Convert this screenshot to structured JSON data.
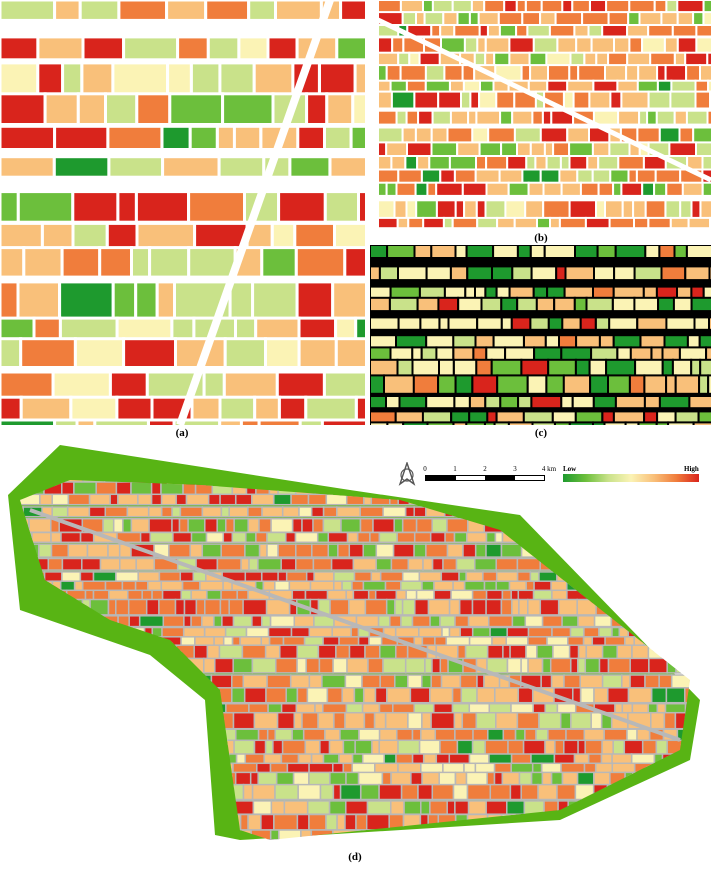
{
  "panels": {
    "a": {
      "label": "(a)"
    },
    "b": {
      "label": "(b)"
    },
    "c": {
      "label": "(c)"
    },
    "d": {
      "label": "(d)"
    }
  },
  "scale_bar": {
    "ticks": [
      "0",
      "1",
      "2",
      "3",
      "4 km"
    ]
  },
  "north_arrow": {
    "icon": "north-arrow-icon"
  },
  "legend": {
    "low_label": "Low",
    "high_label": "High",
    "colors": [
      "#1e9a2e",
      "#6cbf3c",
      "#c9e28a",
      "#fbf3b5",
      "#f9c07a",
      "#f07d3c",
      "#d9241c"
    ]
  },
  "colors": {
    "road": "#ffffff",
    "panel_c_road": "#000000",
    "water_green": "#58b414",
    "road_d": "#b8b8b8"
  }
}
